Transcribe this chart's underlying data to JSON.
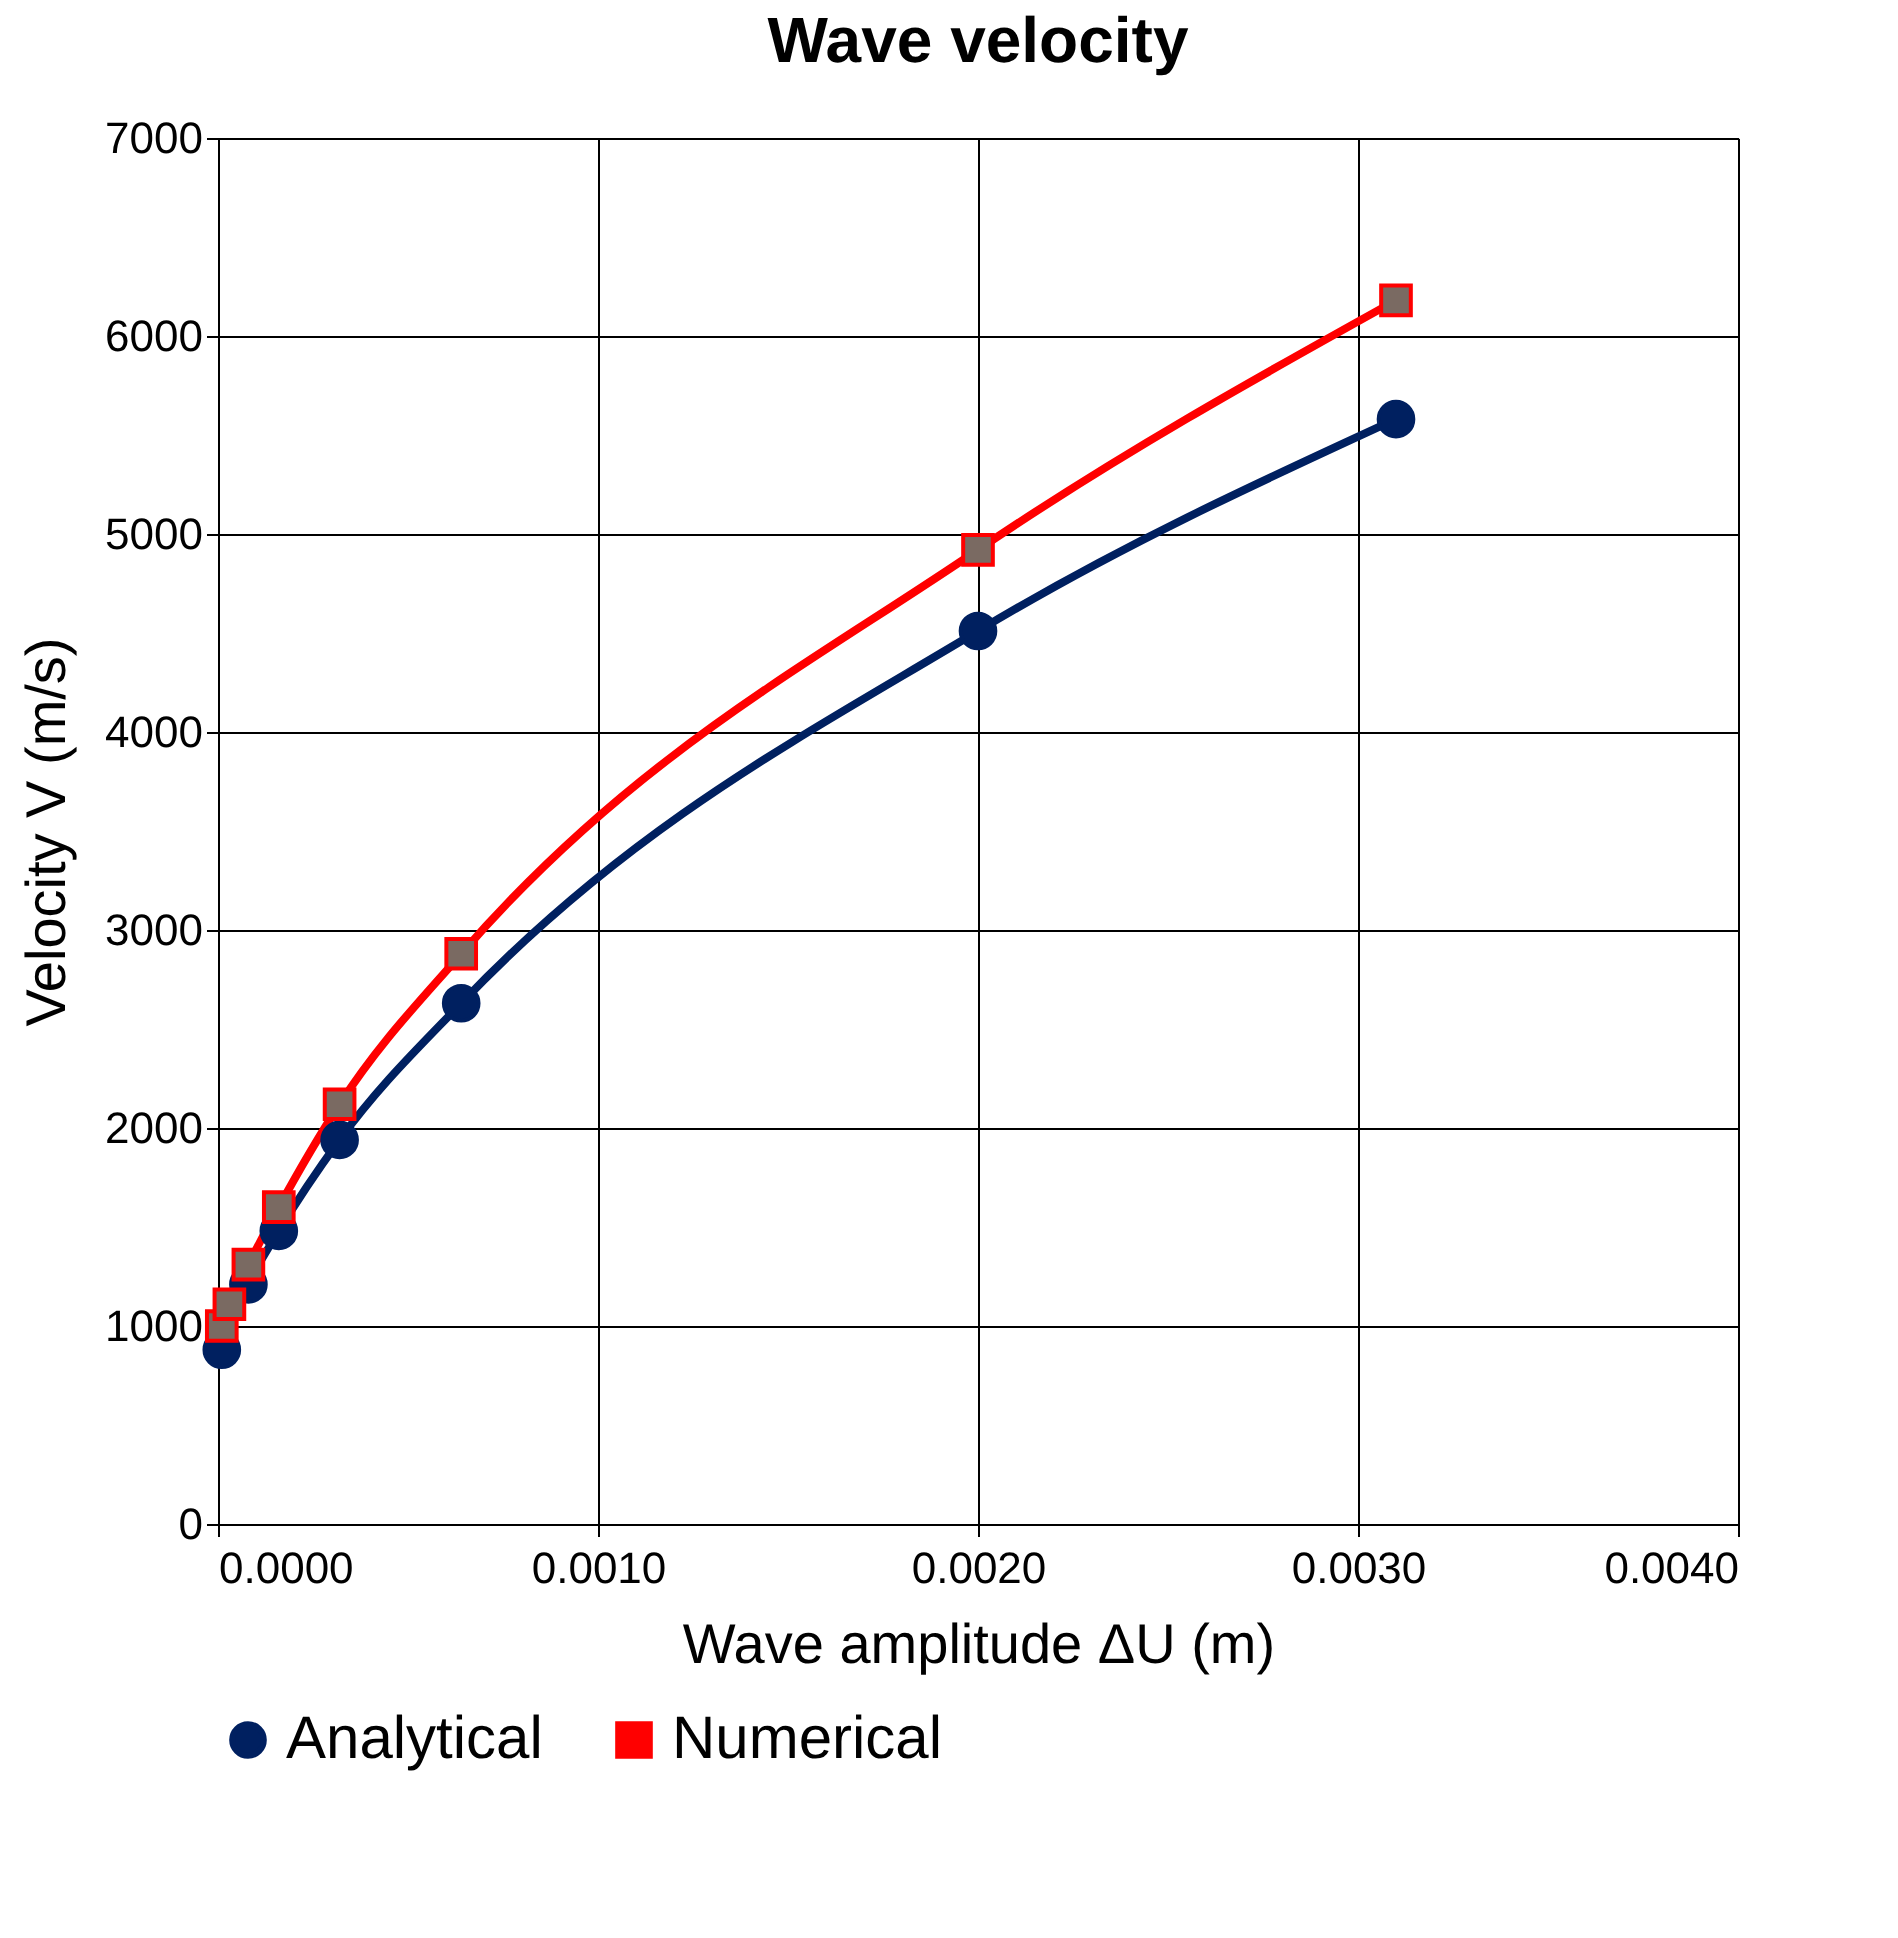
{
  "chart_data": {
    "type": "line",
    "title": "Wave velocity",
    "xlabel": "Wave amplitude ΔU  (m)",
    "ylabel": "Velocity V  (m/s)",
    "xlim": [
      0,
      0.004
    ],
    "xticks": [
      {
        "value": 0,
        "label": "0.0000"
      },
      {
        "value": 0.001,
        "label": "0.0010"
      },
      {
        "value": 0.002,
        "label": "0.0020"
      },
      {
        "value": 0.003,
        "label": "0.0030"
      },
      {
        "value": 0.004,
        "label": "0.0040"
      }
    ],
    "ylim": [
      0,
      7000
    ],
    "yticks": [
      0,
      1000,
      2000,
      3000,
      4000,
      5000,
      6000,
      7000
    ],
    "grid": true,
    "legend": "bottom",
    "series": [
      {
        "name": "Analytical",
        "color": "#002060",
        "marker": "circle",
        "line_style": "solid",
        "x": [
          1e-05,
          8e-05,
          0.00016,
          0.00032,
          0.00064,
          0.002,
          0.0031
        ],
        "values": [
          880,
          1210,
          1480,
          1940,
          2630,
          4510,
          5580
        ]
      },
      {
        "name": "Numerical",
        "color": "#ff0000",
        "marker": "square",
        "line_style": "solid",
        "x": [
          1e-05,
          3e-05,
          8e-05,
          0.00016,
          0.00032,
          0.00064,
          0.002,
          0.0031
        ],
        "values": [
          1000,
          1110,
          1310,
          1600,
          2120,
          2880,
          4920,
          6180
        ]
      }
    ]
  }
}
